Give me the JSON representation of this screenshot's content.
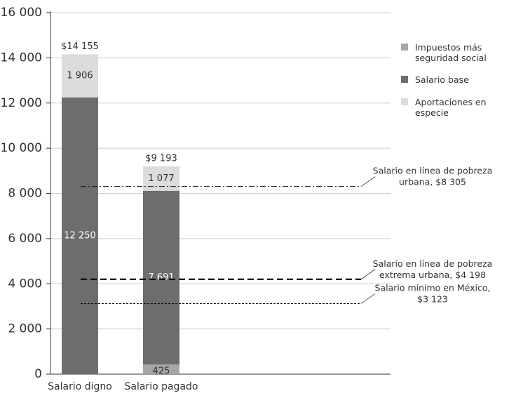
{
  "chart_data": {
    "type": "stacked_bar",
    "categories": [
      "Salario digno",
      "Salario pagado"
    ],
    "series": [
      {
        "name": "Impuestos más seguridad social",
        "color": "#a6a6a6",
        "values": [
          0,
          425
        ],
        "value_labels": [
          null,
          "425"
        ]
      },
      {
        "name": "Salario base",
        "color": "#6d6d6d",
        "values": [
          12250,
          7691
        ],
        "value_labels": [
          "12 250",
          "7 691"
        ]
      },
      {
        "name": "Aportaciones en especie",
        "color": "#dcdcdc",
        "values": [
          1906,
          1077
        ],
        "value_labels": [
          "1 906",
          "1 077"
        ]
      }
    ],
    "totals": [
      14155,
      9193
    ],
    "total_labels": [
      "$14 155",
      "$9 193"
    ],
    "reference_lines": [
      {
        "value": 8305,
        "style": "dash-dot",
        "label": [
          "Salario en línea de pobreza",
          "urbana, $8 305"
        ]
      },
      {
        "value": 4198,
        "style": "dashed",
        "label": [
          "Salario en línea de pobreza",
          "extrema urbana, $4 198"
        ]
      },
      {
        "value": 3123,
        "style": "dotted",
        "label": [
          "Salario mínimo en México,",
          "$3 123"
        ]
      }
    ],
    "ylim": [
      0,
      16000
    ],
    "yticks": [
      0,
      {
        "value": 2000,
        "label": "2 000"
      },
      {
        "value": 4000,
        "label": "4 000"
      },
      {
        "value": 6000,
        "label": "6 000"
      },
      {
        "value": 8000,
        "label": "8 000"
      },
      {
        "value": 10000,
        "label": "10 000"
      },
      {
        "value": 12000,
        "label": "12 000"
      },
      {
        "value": 14000,
        "label": "14 000"
      },
      {
        "value": 16000,
        "label": "16 000"
      }
    ],
    "grid": true
  }
}
